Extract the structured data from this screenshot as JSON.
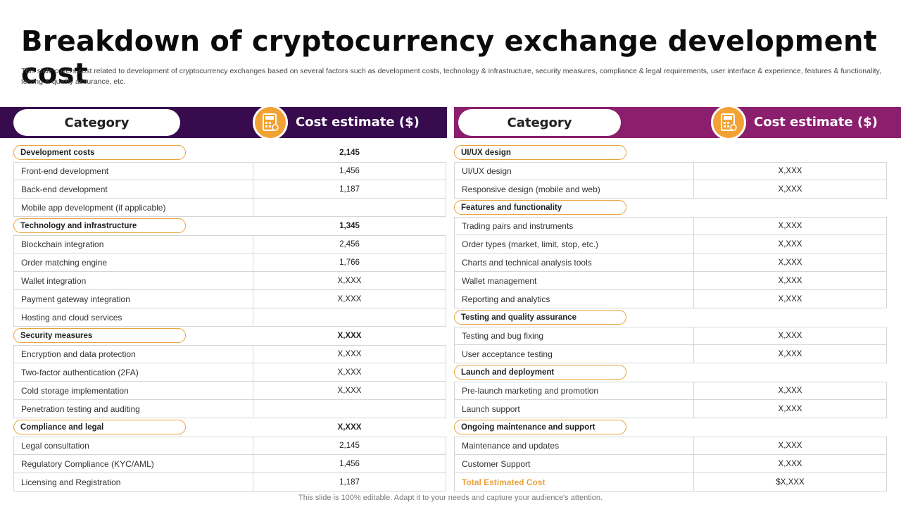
{
  "title": "Breakdown of cryptocurrency exchange development cost",
  "subtitle": "This slide covers cost related to development of cryptocurrency exchanges based on several factors such as development costs, technology & infrastructure, security measures, compliance & legal requirements, user interface & experience, features & functionality, testing & quality assurance, etc.",
  "footer": "This slide is 100% editable. Adapt it to your needs and capture your audience's attention.",
  "colors": {
    "left_header": "#380b4f",
    "right_header": "#8b1f6e",
    "accent": "#f2a234"
  },
  "left": {
    "category_label": "Category",
    "cost_label": "Cost estimate ($)",
    "icon": "calculator-icon",
    "rows": [
      {
        "type": "section",
        "label": "Development costs",
        "value": "2,145"
      },
      {
        "type": "item",
        "label": "Front-end development",
        "value": "1,456"
      },
      {
        "type": "item",
        "label": "Back-end development",
        "value": "1,187"
      },
      {
        "type": "item",
        "label": "Mobile app development (if applicable)",
        "value": ""
      },
      {
        "type": "section",
        "label": "Technology and infrastructure",
        "value": "1,345"
      },
      {
        "type": "item",
        "label": "Blockchain integration",
        "value": "2,456"
      },
      {
        "type": "item",
        "label": "Order matching engine",
        "value": "1,766"
      },
      {
        "type": "item",
        "label": "Wallet integration",
        "value": "X,XXX"
      },
      {
        "type": "item",
        "label": "Payment gateway integration",
        "value": "X,XXX"
      },
      {
        "type": "item",
        "label": "Hosting and cloud services",
        "value": ""
      },
      {
        "type": "section",
        "label": "Security measures",
        "value": "X,XXX"
      },
      {
        "type": "item",
        "label": "Encryption and data protection",
        "value": "X,XXX"
      },
      {
        "type": "item",
        "label": "Two-factor authentication (2FA)",
        "value": "X,XXX"
      },
      {
        "type": "item",
        "label": "Cold storage implementation",
        "value": "X,XXX"
      },
      {
        "type": "item",
        "label": "Penetration testing and auditing",
        "value": ""
      },
      {
        "type": "section",
        "label": "Compliance and legal",
        "value": "X,XXX"
      },
      {
        "type": "item",
        "label": "Legal consultation",
        "value": "2,145"
      },
      {
        "type": "item",
        "label": "Regulatory Compliance (KYC/AML)",
        "value": "1,456"
      },
      {
        "type": "item",
        "label": "Licensing and Registration",
        "value": "1,187"
      }
    ]
  },
  "right": {
    "category_label": "Category",
    "cost_label": "Cost estimate ($)",
    "icon": "calculator-icon",
    "rows": [
      {
        "type": "section",
        "label": "UI/UX design",
        "value": ""
      },
      {
        "type": "item",
        "label": "UI/UX design",
        "value": "X,XXX"
      },
      {
        "type": "item",
        "label": "Responsive design (mobile and web)",
        "value": "X,XXX"
      },
      {
        "type": "section",
        "label": "Features and functionality",
        "value": ""
      },
      {
        "type": "item",
        "label": "Trading pairs and instruments",
        "value": "X,XXX"
      },
      {
        "type": "item",
        "label": "Order types (market, limit, stop, etc.)",
        "value": "X,XXX"
      },
      {
        "type": "item",
        "label": "Charts and technical analysis tools",
        "value": "X,XXX"
      },
      {
        "type": "item",
        "label": "Wallet management",
        "value": "X,XXX"
      },
      {
        "type": "item",
        "label": "Reporting and analytics",
        "value": "X,XXX"
      },
      {
        "type": "section",
        "label": "Testing and quality assurance",
        "value": ""
      },
      {
        "type": "item",
        "label": "Testing and bug fixing",
        "value": "X,XXX"
      },
      {
        "type": "item",
        "label": "User acceptance testing",
        "value": "X,XXX"
      },
      {
        "type": "section",
        "label": "Launch and deployment",
        "value": ""
      },
      {
        "type": "item",
        "label": "Pre-launch marketing and promotion",
        "value": "X,XXX"
      },
      {
        "type": "item",
        "label": "Launch support",
        "value": "X,XXX"
      },
      {
        "type": "section",
        "label": "Ongoing maintenance and support",
        "value": ""
      },
      {
        "type": "item",
        "label": "Maintenance and updates",
        "value": "X,XXX"
      },
      {
        "type": "item",
        "label": "Customer Support",
        "value": "X,XXX"
      },
      {
        "type": "total",
        "label": "Total Estimated Cost",
        "value": "$X,XXX"
      }
    ]
  }
}
